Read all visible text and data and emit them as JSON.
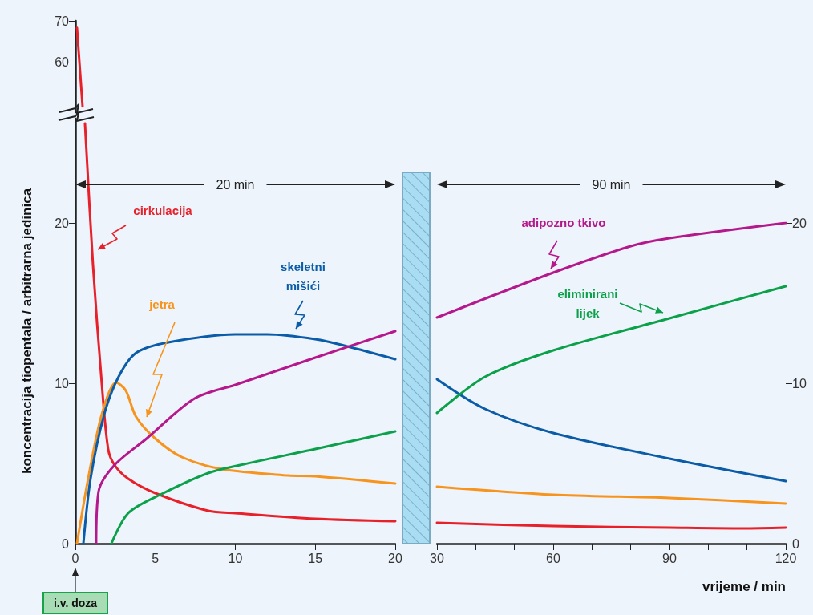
{
  "chart_data": [
    {
      "type": "line",
      "xlim": [
        0,
        20
      ],
      "ylim": [
        48,
        70
      ],
      "yticks": [
        60,
        70
      ],
      "tick_labels": "y",
      "marker": "none",
      "line_style": "solid",
      "series": [
        {
          "color": "#e8202a",
          "x": [
            0.1,
            0.45
          ],
          "values": [
            68.3,
            49.4
          ]
        }
      ]
    },
    {
      "type": "line",
      "xlim": [
        0,
        20
      ],
      "xticks": [
        0,
        5,
        10,
        15,
        20
      ],
      "ylim": [
        0,
        26.5
      ],
      "yticks": [
        0,
        10,
        20
      ],
      "ylabel": "koncentracija tiopentala / arbitrarna jedinica",
      "annotations": [
        "20 min",
        "i.v. doza"
      ],
      "marker": "none",
      "line_style": "solid",
      "series": [
        {
          "name": "cirkulacija",
          "color": "#e8202a",
          "x": [
            0.6,
            1.1,
            1.65,
            2.05,
            2.45,
            3.3,
            5,
            8.3,
            10,
            15,
            20
          ],
          "values": [
            26.2,
            17.4,
            10,
            5.9,
            4.9,
            4.05,
            3.15,
            2.05,
            1.9,
            1.55,
            1.4
          ]
        },
        {
          "name": "jetra",
          "color": "#f7941d",
          "x": [
            0.1,
            0.8,
            1.65,
            2.55,
            3.15,
            3.8,
            5,
            6.65,
            9.15,
            13.3,
            15,
            20
          ],
          "values": [
            0,
            4.05,
            8.05,
            10.05,
            9.55,
            7.9,
            6.55,
            5.4,
            4.65,
            4.25,
            4.2,
            3.75
          ]
        },
        {
          "name": "skeletni mišići",
          "color": "#0b5ca8",
          "x": [
            0.5,
            0.95,
            1.8,
            2.7,
            3.8,
            5.8,
            10,
            12,
            15,
            17,
            20
          ],
          "values": [
            0,
            4.05,
            8.05,
            10.4,
            11.9,
            12.55,
            13.05,
            13.05,
            12.75,
            12.3,
            11.5
          ]
        },
        {
          "color": "#b5178c",
          "x": [
            1.3,
            1.45,
            2.45,
            4.45,
            7.45,
            10,
            15,
            20
          ],
          "values": [
            0,
            3.25,
            4.9,
            6.55,
            9.05,
            9.9,
            11.6,
            13.25
          ]
        },
        {
          "color": "#0ba14b",
          "x": [
            2.25,
            3.3,
            5.3,
            8.3,
            10.3,
            15,
            20
          ],
          "values": [
            0,
            1.9,
            3.05,
            4.4,
            4.9,
            5.9,
            7
          ]
        }
      ]
    },
    {
      "type": "line",
      "xlim": [
        30,
        120
      ],
      "xticks": [
        30,
        {
          "value": 40,
          "label": null
        },
        {
          "value": 50,
          "label": null
        },
        60,
        {
          "value": 70,
          "label": null
        },
        {
          "value": 80,
          "label": null
        },
        90,
        {
          "value": 100,
          "label": null
        },
        {
          "value": 110,
          "label": null
        },
        120
      ],
      "ylim": [
        0,
        20
      ],
      "yticks": [
        0,
        10,
        20
      ],
      "xlabel": "vrijeme / min",
      "annotations": [
        "90 min"
      ],
      "marker": "none",
      "line_style": "solid",
      "series": [
        {
          "color": "#e8202a",
          "x": [
            30,
            60,
            90,
            109,
            120
          ],
          "values": [
            1.3,
            1.1,
            1,
            0.95,
            1
          ]
        },
        {
          "color": "#f7941d",
          "x": [
            30,
            60,
            90,
            120
          ],
          "values": [
            3.55,
            3.05,
            2.85,
            2.5
          ]
        },
        {
          "color": "#0b5ca8",
          "x": [
            30,
            42.4,
            60,
            90,
            120
          ],
          "values": [
            10.25,
            8.4,
            6.9,
            5.3,
            3.9
          ]
        },
        {
          "name": "adipozno tkivo",
          "color": "#b5178c",
          "x": [
            30,
            60,
            80,
            90,
            120
          ],
          "values": [
            14.1,
            16.9,
            18.55,
            19.05,
            20
          ]
        },
        {
          "name": "eliminirani lijek",
          "color": "#0ba14b",
          "x": [
            30,
            42.4,
            60,
            90,
            120
          ],
          "values": [
            8.15,
            10.4,
            12.05,
            14.05,
            16.05
          ]
        }
      ]
    }
  ]
}
